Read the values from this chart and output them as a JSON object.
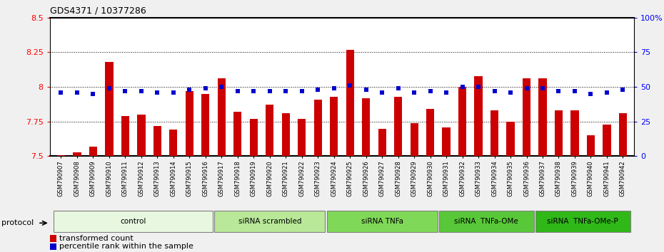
{
  "title": "GDS4371 / 10377286",
  "samples": [
    "GSM790907",
    "GSM790908",
    "GSM790909",
    "GSM790910",
    "GSM790911",
    "GSM790912",
    "GSM790913",
    "GSM790914",
    "GSM790915",
    "GSM790916",
    "GSM790917",
    "GSM790918",
    "GSM790919",
    "GSM790920",
    "GSM790921",
    "GSM790922",
    "GSM790923",
    "GSM790924",
    "GSM790925",
    "GSM790926",
    "GSM790927",
    "GSM790928",
    "GSM790929",
    "GSM790930",
    "GSM790931",
    "GSM790932",
    "GSM790933",
    "GSM790934",
    "GSM790935",
    "GSM790936",
    "GSM790937",
    "GSM790938",
    "GSM790939",
    "GSM790940",
    "GSM790941",
    "GSM790942"
  ],
  "bar_values": [
    7.51,
    7.53,
    7.57,
    8.18,
    7.79,
    7.8,
    7.72,
    7.69,
    7.97,
    7.95,
    8.06,
    7.82,
    7.77,
    7.87,
    7.81,
    7.77,
    7.91,
    7.93,
    8.27,
    7.92,
    7.7,
    7.93,
    7.74,
    7.84,
    7.71,
    8.0,
    8.08,
    7.83,
    7.75,
    8.06,
    8.06,
    7.83,
    7.83,
    7.65,
    7.73,
    7.81
  ],
  "percentile_values": [
    46,
    46,
    45,
    49,
    47,
    47,
    46,
    46,
    48,
    49,
    50,
    47,
    47,
    47,
    47,
    47,
    48,
    49,
    51,
    48,
    46,
    49,
    46,
    47,
    46,
    50,
    50,
    47,
    46,
    49,
    49,
    47,
    47,
    45,
    46,
    48
  ],
  "groups": [
    {
      "label": "control",
      "start": 0,
      "end": 10,
      "color": "#e8f8e0"
    },
    {
      "label": "siRNA scrambled",
      "start": 10,
      "end": 17,
      "color": "#b8e898"
    },
    {
      "label": "siRNA TNFa",
      "start": 17,
      "end": 24,
      "color": "#80d858"
    },
    {
      "label": "siRNA  TNFa-OMe",
      "start": 24,
      "end": 30,
      "color": "#58c838"
    },
    {
      "label": "siRNA  TNFa-OMe-P",
      "start": 30,
      "end": 36,
      "color": "#30b818"
    }
  ],
  "ylim_left": [
    7.5,
    8.5
  ],
  "ylim_right": [
    0,
    100
  ],
  "yticks_left": [
    7.5,
    7.75,
    8.0,
    8.25,
    8.5
  ],
  "yticks_left_labels": [
    "7.5",
    "7.75",
    "8",
    "8.25",
    "8.5"
  ],
  "yticks_right": [
    0,
    25,
    50,
    75,
    100
  ],
  "yticks_right_labels": [
    "0",
    "25",
    "50",
    "75",
    "100%"
  ],
  "bar_color": "#cc0000",
  "dot_color": "#0000cc",
  "bar_width": 0.5,
  "protocol_label": "protocol",
  "legend_bar": "transformed count",
  "legend_dot": "percentile rank within the sample",
  "bg_color": "#d8d8d8",
  "plot_bg": "#ffffff"
}
